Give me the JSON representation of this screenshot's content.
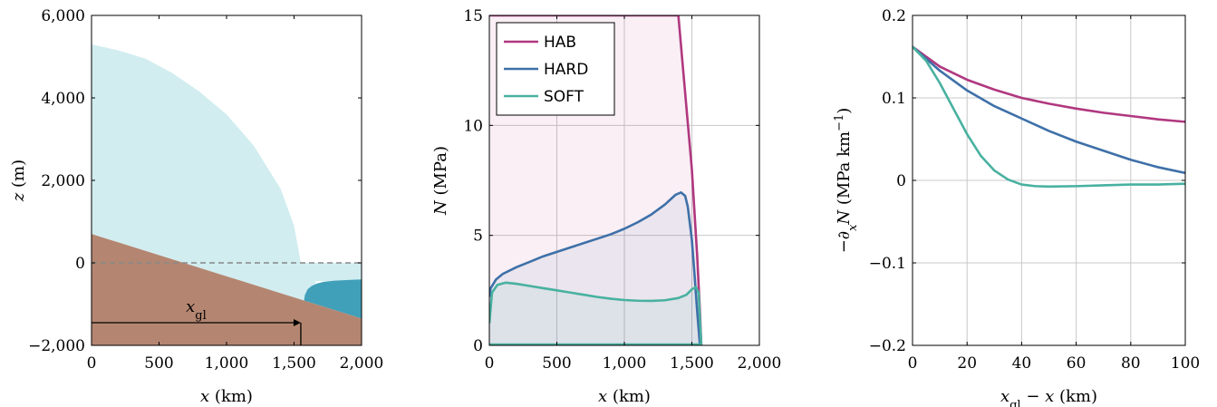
{
  "chart_data": [
    {
      "type": "area",
      "xlabel": "x (km)",
      "ylabel": "z (m)",
      "xlim": [
        0,
        2000
      ],
      "ylim": [
        -2000,
        6000
      ],
      "xticks": [
        "0",
        "500",
        "1,000",
        "1,500",
        "2,000"
      ],
      "yticks": [
        "−2,000",
        "0",
        "2,000",
        "4,000",
        "6,000"
      ],
      "grid": false,
      "annotation": "x_gl",
      "grounding_line_x": 1550,
      "bed": {
        "x": [
          0,
          2000
        ],
        "z": [
          700,
          -1350
        ]
      },
      "ice_surface": {
        "x": [
          0,
          200,
          400,
          600,
          800,
          1000,
          1200,
          1400,
          1500,
          1550
        ],
        "z": [
          5300,
          5150,
          4950,
          4600,
          4150,
          3600,
          2850,
          1800,
          900,
          0
        ]
      },
      "sea_level": 0,
      "ice_shelf_top": -400,
      "colors": {
        "ice": "#d1edf0",
        "bed": "#b48671",
        "ocean": "#41a0b9",
        "sea_level": "#888888"
      }
    },
    {
      "type": "line",
      "xlabel": "N (MPa)",
      "xaxis_label": "x (km)",
      "ylabel": "N (MPa)",
      "xlim": [
        0,
        2000
      ],
      "ylim": [
        0,
        15
      ],
      "xticks": [
        "0",
        "500",
        "1,000",
        "1,500",
        "2,000"
      ],
      "yticks": [
        "0",
        "5",
        "10",
        "15"
      ],
      "grid": true,
      "legend": "top-left",
      "series": [
        {
          "name": "HAB",
          "color": "#b0387f",
          "x": [
            0,
            1400,
            1450,
            1500,
            1540,
            1560,
            1570
          ],
          "y": [
            15,
            15,
            11.5,
            8,
            4,
            1.5,
            0
          ]
        },
        {
          "name": "HARD",
          "color": "#3e70a8",
          "x": [
            0,
            10,
            50,
            100,
            200,
            300,
            400,
            500,
            600,
            700,
            800,
            900,
            1000,
            1100,
            1200,
            1300,
            1380,
            1420,
            1450,
            1470,
            1500,
            1520,
            1540,
            1560
          ],
          "y": [
            2.2,
            2.6,
            3.0,
            3.25,
            3.55,
            3.8,
            4.05,
            4.25,
            4.45,
            4.65,
            4.85,
            5.05,
            5.3,
            5.6,
            5.95,
            6.4,
            6.85,
            6.95,
            6.8,
            6.3,
            4.8,
            3.2,
            1.5,
            0
          ]
        },
        {
          "name": "SOFT",
          "color": "#48b1a0",
          "x": [
            0,
            20,
            60,
            120,
            200,
            300,
            400,
            500,
            600,
            700,
            800,
            900,
            1000,
            1100,
            1200,
            1300,
            1400,
            1460,
            1500,
            1530,
            1550,
            1560,
            1570
          ],
          "y": [
            1.0,
            2.4,
            2.75,
            2.85,
            2.8,
            2.7,
            2.6,
            2.5,
            2.4,
            2.3,
            2.2,
            2.12,
            2.06,
            2.03,
            2.02,
            2.05,
            2.15,
            2.3,
            2.55,
            2.65,
            2.4,
            1.2,
            0
          ]
        }
      ]
    },
    {
      "type": "line",
      "xlabel": "x_gl − x (km)",
      "ylabel": "−∂_x N (MPa km^−1)",
      "xlim": [
        0,
        100
      ],
      "ylim": [
        -0.2,
        0.2
      ],
      "xticks": [
        "0",
        "20",
        "40",
        "60",
        "80",
        "100"
      ],
      "yticks": [
        "−0.2",
        "−0.1",
        "0",
        "0.1",
        "0.2"
      ],
      "grid": true,
      "series": [
        {
          "name": "HAB",
          "color": "#b0387f",
          "x": [
            0,
            10,
            20,
            30,
            40,
            50,
            60,
            70,
            80,
            90,
            100
          ],
          "y": [
            0.162,
            0.138,
            0.122,
            0.11,
            0.1,
            0.093,
            0.087,
            0.082,
            0.078,
            0.074,
            0.071
          ]
        },
        {
          "name": "HARD",
          "color": "#3e70a8",
          "x": [
            0,
            10,
            20,
            30,
            40,
            50,
            60,
            70,
            80,
            90,
            100
          ],
          "y": [
            0.162,
            0.133,
            0.109,
            0.09,
            0.075,
            0.06,
            0.047,
            0.036,
            0.025,
            0.016,
            0.009
          ]
        },
        {
          "name": "SOFT",
          "color": "#48b1a0",
          "x": [
            0,
            5,
            10,
            15,
            20,
            25,
            30,
            35,
            40,
            45,
            50,
            60,
            70,
            80,
            90,
            100
          ],
          "y": [
            0.162,
            0.145,
            0.118,
            0.087,
            0.056,
            0.03,
            0.012,
            0.001,
            -0.005,
            -0.007,
            -0.0075,
            -0.007,
            -0.006,
            -0.005,
            -0.005,
            -0.004
          ]
        }
      ]
    }
  ]
}
